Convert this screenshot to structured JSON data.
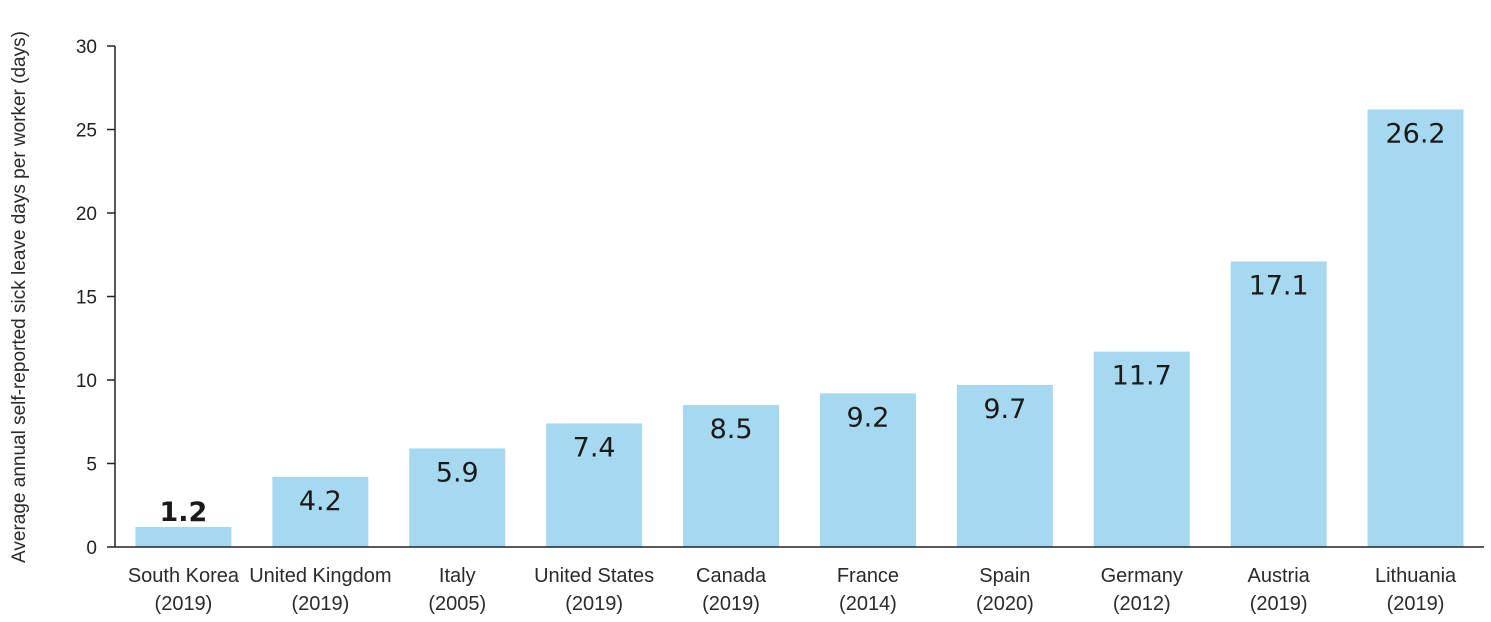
{
  "chart_data": {
    "type": "bar",
    "ylabel": "Average annual self-reported sick leave days per worker (days)",
    "ylim": [
      0,
      30
    ],
    "yticks": [
      0,
      5,
      10,
      15,
      20,
      25,
      30
    ],
    "grid": false,
    "categories": [
      {
        "name": "South Korea",
        "year": "(2019)"
      },
      {
        "name": "United Kingdom",
        "year": "(2019)"
      },
      {
        "name": "Italy",
        "year": "(2005)"
      },
      {
        "name": "United States",
        "year": "(2019)"
      },
      {
        "name": "Canada",
        "year": "(2019)"
      },
      {
        "name": "France",
        "year": "(2014)"
      },
      {
        "name": "Spain",
        "year": "(2020)"
      },
      {
        "name": "Germany",
        "year": "(2012)"
      },
      {
        "name": "Austria",
        "year": "(2019)"
      },
      {
        "name": "Lithuania",
        "year": "(2019)"
      }
    ],
    "values": [
      1.2,
      4.2,
      5.9,
      7.4,
      8.5,
      9.2,
      9.7,
      11.7,
      17.1,
      26.2
    ],
    "value_labels": [
      "1.2",
      "4.2",
      "5.9",
      "7.4",
      "8.5",
      "9.2",
      "9.7",
      "11.7",
      "17.1",
      "26.2"
    ],
    "highlight_index": 0,
    "colors": {
      "bar": "#a6d9f0",
      "highlight_text": "#d9262c",
      "axis": "#222222",
      "text": "#2a2a2a"
    }
  }
}
